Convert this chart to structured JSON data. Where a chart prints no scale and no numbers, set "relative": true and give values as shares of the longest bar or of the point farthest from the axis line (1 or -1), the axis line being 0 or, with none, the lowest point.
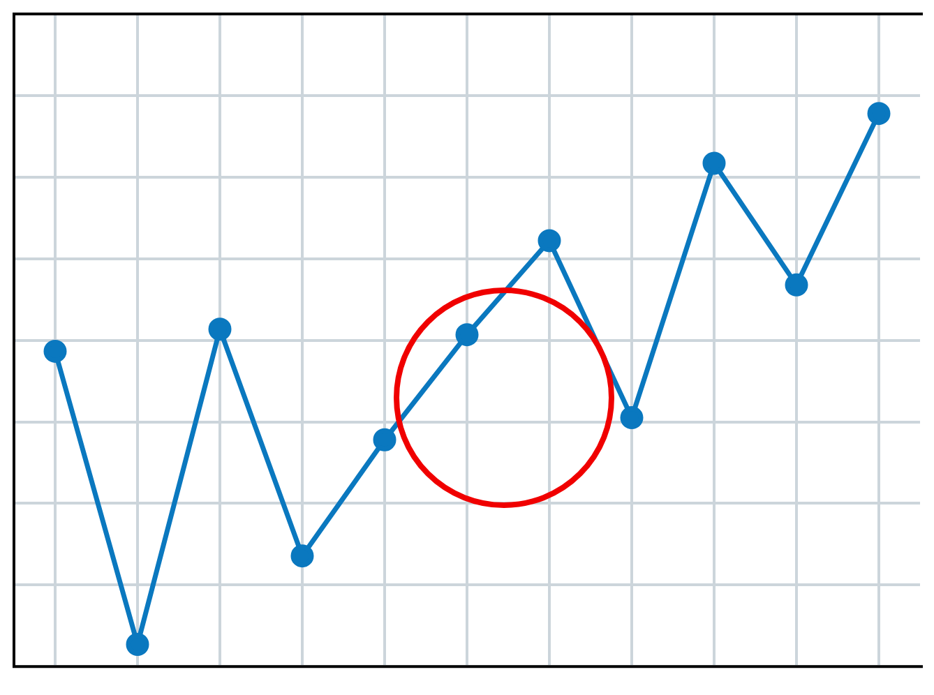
{
  "chart_data": {
    "type": "line",
    "relative": true,
    "categories": [
      null,
      null,
      null,
      null,
      null,
      null,
      null,
      null,
      null,
      null,
      null
    ],
    "series": [
      {
        "color": "#0a78bf",
        "values": [
          0.57,
          0.04,
          0.61,
          0.2,
          0.41,
          0.6,
          0.77,
          0.45,
          0.91,
          0.69,
          1
        ]
      }
    ],
    "grid": true,
    "legend": false,
    "marker": "circle",
    "line_style": "solid"
  }
}
